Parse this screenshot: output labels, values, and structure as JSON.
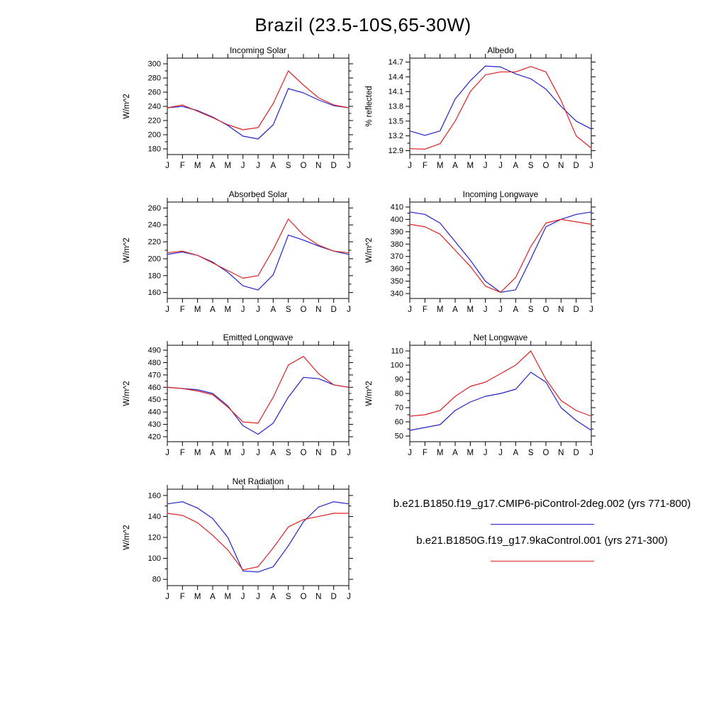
{
  "page_title": "Brazil (23.5-10S,65-30W)",
  "legend": [
    {
      "label": "b.e21.B1850.f19_g17.CMIP6-piControl-2deg.002 (yrs 771-800)",
      "color": "#2222cc"
    },
    {
      "label": "b.e21.B1850G.f19_g17.9kaControl.001 (yrs 271-300)",
      "color": "#dd2222"
    }
  ],
  "chart_data": [
    {
      "type": "line",
      "title": "Incoming Solar",
      "xlabel": "",
      "ylabel": "W/m^2",
      "ylim": [
        172,
        308
      ],
      "yticks": [
        180,
        200,
        220,
        240,
        260,
        280,
        300
      ],
      "ytick_decimals": 0,
      "grid": false,
      "categories": [
        "J",
        "F",
        "M",
        "A",
        "M",
        "J",
        "J",
        "A",
        "S",
        "O",
        "N",
        "D",
        "J"
      ],
      "series": [
        {
          "name": "b.e21.B1850 CMIP6-piControl (blue)",
          "color": "#2222cc",
          "values": [
            238,
            240,
            234,
            225,
            213,
            198,
            194,
            214,
            265,
            259,
            249,
            241,
            238
          ]
        },
        {
          "name": "b.e21.B1850G 9kaControl (red)",
          "color": "#dd2222",
          "values": [
            238,
            242,
            233,
            224,
            214,
            207,
            210,
            244,
            290,
            270,
            252,
            242,
            238
          ]
        }
      ]
    },
    {
      "type": "line",
      "title": "Albedo",
      "xlabel": "",
      "ylabel": "% reflected",
      "ylim": [
        12.82,
        14.78
      ],
      "yticks": [
        12.9,
        13.2,
        13.5,
        13.8,
        14.1,
        14.4,
        14.7
      ],
      "ytick_decimals": 1,
      "grid": false,
      "categories": [
        "J",
        "F",
        "M",
        "A",
        "M",
        "J",
        "J",
        "A",
        "S",
        "O",
        "N",
        "D",
        "J"
      ],
      "series": [
        {
          "name": "b.e21.B1850 CMIP6-piControl (blue)",
          "color": "#2222cc",
          "values": [
            13.3,
            13.21,
            13.3,
            13.95,
            14.32,
            14.62,
            14.6,
            14.46,
            14.36,
            14.15,
            13.8,
            13.5,
            13.34
          ]
        },
        {
          "name": "b.e21.B1850G 9kaControl (red)",
          "color": "#dd2222",
          "values": [
            12.94,
            12.93,
            13.04,
            13.5,
            14.1,
            14.44,
            14.5,
            14.5,
            14.61,
            14.5,
            13.92,
            13.2,
            12.95
          ]
        }
      ]
    },
    {
      "type": "line",
      "title": "Absorbed Solar",
      "xlabel": "",
      "ylabel": "W/m^2",
      "ylim": [
        153,
        267
      ],
      "yticks": [
        160,
        180,
        200,
        220,
        240,
        260
      ],
      "ytick_decimals": 0,
      "grid": false,
      "categories": [
        "J",
        "F",
        "M",
        "A",
        "M",
        "J",
        "J",
        "A",
        "S",
        "O",
        "N",
        "D",
        "J"
      ],
      "series": [
        {
          "name": "b.e21.B1850 CMIP6-piControl (blue)",
          "color": "#2222cc",
          "values": [
            205,
            208,
            204,
            196,
            184,
            168,
            163,
            181,
            228,
            222,
            215,
            209,
            205
          ]
        },
        {
          "name": "b.e21.B1850G 9kaControl (red)",
          "color": "#dd2222",
          "values": [
            207,
            209,
            204,
            195,
            186,
            177,
            180,
            211,
            247,
            228,
            216,
            209,
            207
          ]
        }
      ]
    },
    {
      "type": "line",
      "title": "Incoming Longwave",
      "xlabel": "",
      "ylabel": "W/m^2",
      "ylim": [
        336,
        414
      ],
      "yticks": [
        340,
        350,
        360,
        370,
        380,
        390,
        400,
        410
      ],
      "ytick_decimals": 0,
      "grid": false,
      "categories": [
        "J",
        "F",
        "M",
        "A",
        "M",
        "J",
        "J",
        "A",
        "S",
        "O",
        "N",
        "D",
        "J"
      ],
      "series": [
        {
          "name": "b.e21.B1850 CMIP6-piControl (blue)",
          "color": "#2222cc",
          "values": [
            406,
            404,
            397,
            382,
            367,
            350,
            341,
            343,
            368,
            394,
            400,
            404,
            406
          ]
        },
        {
          "name": "b.e21.B1850G 9kaControl (red)",
          "color": "#dd2222",
          "values": [
            396,
            394,
            388,
            375,
            362,
            346,
            341,
            353,
            378,
            397,
            400,
            398,
            396
          ]
        }
      ]
    },
    {
      "type": "line",
      "title": "Emitted Longwave",
      "xlabel": "",
      "ylabel": "W/m^2",
      "ylim": [
        416,
        494
      ],
      "yticks": [
        420,
        430,
        440,
        450,
        460,
        470,
        480,
        490
      ],
      "ytick_decimals": 0,
      "grid": false,
      "categories": [
        "J",
        "F",
        "M",
        "A",
        "M",
        "J",
        "J",
        "A",
        "S",
        "O",
        "N",
        "D",
        "J"
      ],
      "series": [
        {
          "name": "b.e21.B1850 CMIP6-piControl (blue)",
          "color": "#2222cc",
          "values": [
            460,
            459,
            458,
            455,
            445,
            429,
            422,
            431,
            452,
            468,
            467,
            462,
            460
          ]
        },
        {
          "name": "b.e21.B1850G 9kaControl (red)",
          "color": "#dd2222",
          "values": [
            460,
            459,
            457,
            454,
            444,
            432,
            431,
            452,
            478,
            485,
            471,
            462,
            460
          ]
        }
      ]
    },
    {
      "type": "line",
      "title": "Net Longwave",
      "xlabel": "",
      "ylabel": "W/m^2",
      "ylim": [
        46,
        114
      ],
      "yticks": [
        50,
        60,
        70,
        80,
        90,
        100,
        110
      ],
      "ytick_decimals": 0,
      "grid": false,
      "categories": [
        "J",
        "F",
        "M",
        "A",
        "M",
        "J",
        "J",
        "A",
        "S",
        "O",
        "N",
        "D",
        "J"
      ],
      "series": [
        {
          "name": "b.e21.B1850 CMIP6-piControl (blue)",
          "color": "#2222cc",
          "values": [
            54,
            56,
            58,
            68,
            74,
            78,
            80,
            83,
            95,
            88,
            70,
            61,
            54
          ]
        },
        {
          "name": "b.e21.B1850G 9kaControl (red)",
          "color": "#dd2222",
          "values": [
            64,
            65,
            68,
            78,
            85,
            88,
            94,
            100,
            110,
            90,
            75,
            68,
            64
          ]
        }
      ]
    },
    {
      "type": "line",
      "title": "Net Radiation",
      "xlabel": "",
      "ylabel": "W/m^2",
      "ylim": [
        74,
        166
      ],
      "yticks": [
        80,
        100,
        120,
        140,
        160
      ],
      "ytick_decimals": 0,
      "grid": false,
      "categories": [
        "J",
        "F",
        "M",
        "A",
        "M",
        "J",
        "J",
        "A",
        "S",
        "O",
        "N",
        "D",
        "J"
      ],
      "series": [
        {
          "name": "b.e21.B1850 CMIP6-piControl (blue)",
          "color": "#2222cc",
          "values": [
            152,
            154,
            148,
            138,
            120,
            88,
            87,
            92,
            112,
            135,
            149,
            154,
            152
          ]
        },
        {
          "name": "b.e21.B1850G 9kaControl (red)",
          "color": "#dd2222",
          "values": [
            143,
            141,
            134,
            122,
            108,
            89,
            92,
            110,
            130,
            137,
            140,
            143,
            143
          ]
        }
      ]
    }
  ]
}
